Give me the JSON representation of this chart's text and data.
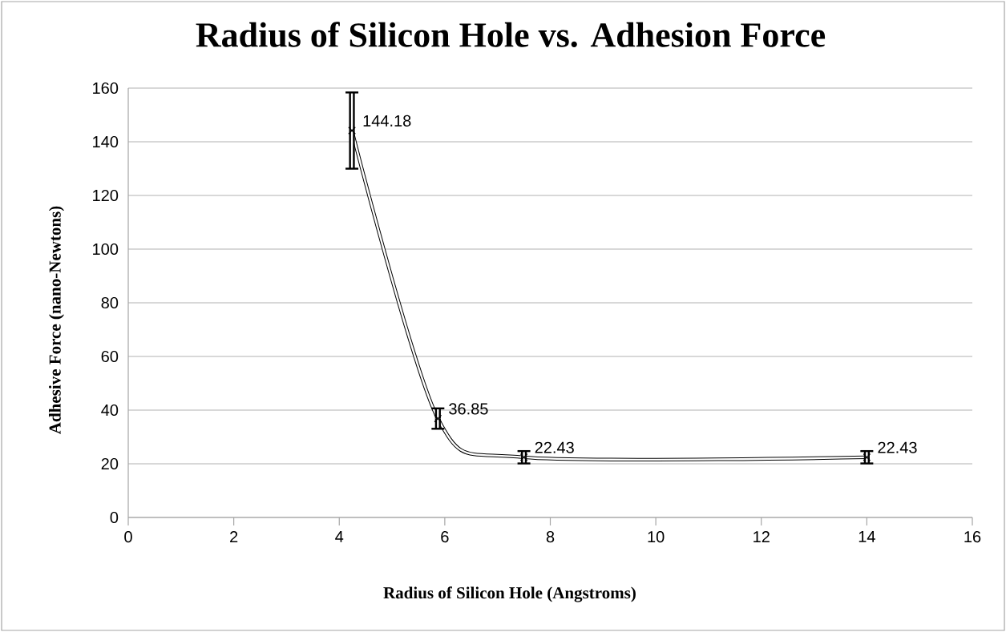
{
  "chart_data": {
    "type": "line",
    "title": "Radius of Silicon Hole vs. Adhesion Force",
    "xlabel": "Radius of Silicon Hole (Angstroms)",
    "ylabel": "Adhesive Force (nano-Newtons)",
    "x": [
      4.24,
      5.87,
      7.5,
      14
    ],
    "values": [
      144.18,
      36.85,
      22.43,
      22.43
    ],
    "errors": [
      14.2,
      3.8,
      2.3,
      2.3
    ],
    "color": "#000000",
    "xlim": [
      0,
      16
    ],
    "xticks": [
      0,
      2,
      4,
      6,
      8,
      10,
      12,
      14,
      16
    ],
    "ylim": [
      0,
      160
    ],
    "yticks": [
      0,
      20,
      40,
      60,
      80,
      100,
      120,
      140,
      160
    ],
    "grid": "y",
    "marker": "cross",
    "data_labels": true
  }
}
